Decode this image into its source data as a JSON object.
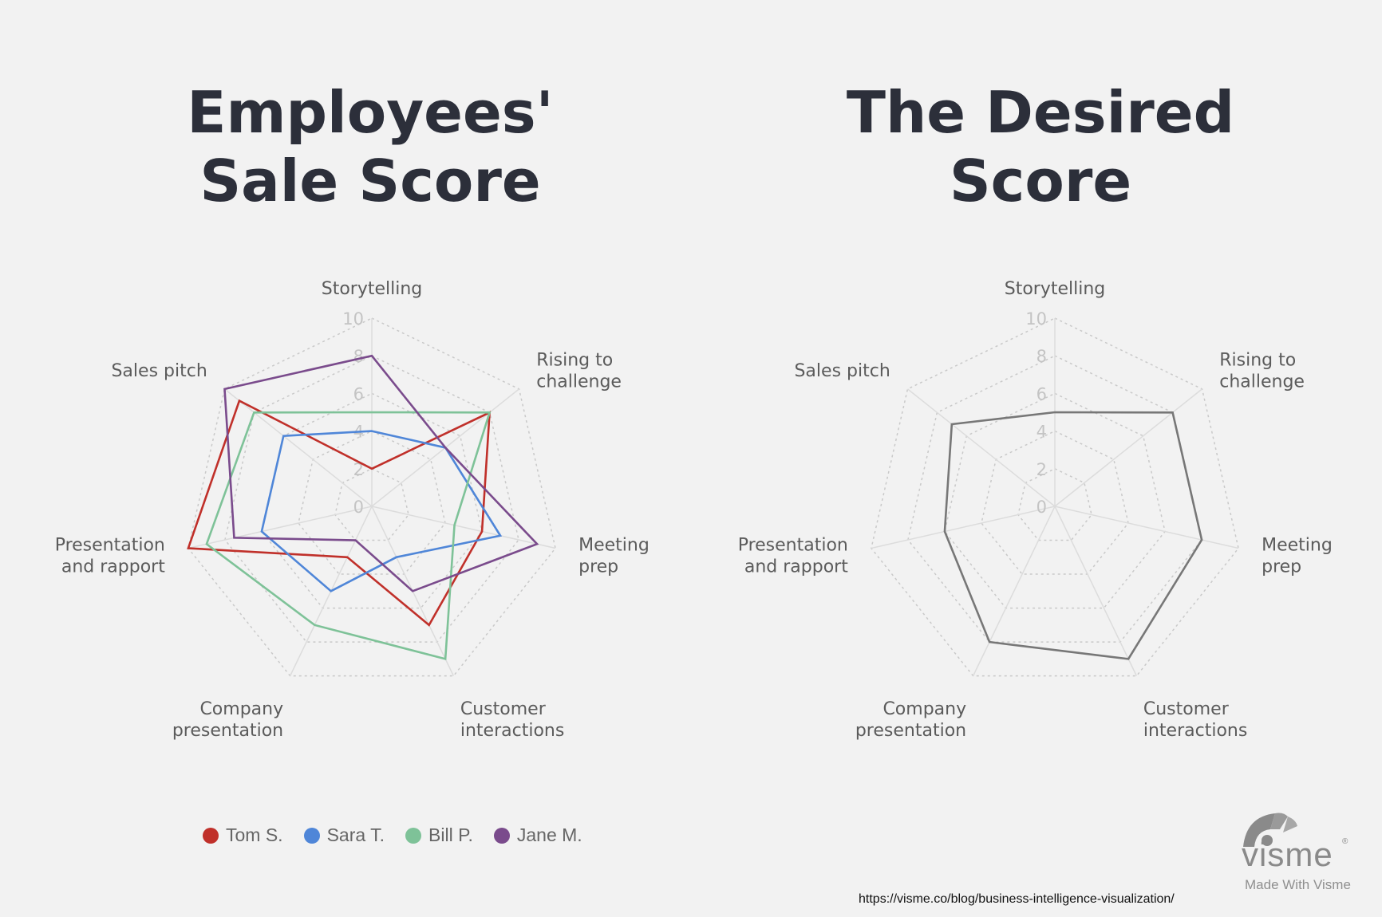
{
  "charts": [
    {
      "title_line1": "Employees'",
      "title_line2": "Sale Score"
    },
    {
      "title_line1": "The Desired",
      "title_line2": "Score"
    }
  ],
  "chart_data": [
    {
      "type": "radar",
      "title": "Employees' Sale Score",
      "axes": [
        [
          "Storytelling"
        ],
        [
          "Rising to",
          "challenge"
        ],
        [
          "Meeting",
          "prep"
        ],
        [
          "Customer",
          "interactions"
        ],
        [
          "Company",
          "presentation"
        ],
        [
          "Presentation",
          "and rapport"
        ],
        [
          "Sales pitch"
        ]
      ],
      "ticks": [
        0,
        2,
        4,
        6,
        8,
        10
      ],
      "range": [
        0,
        10
      ],
      "grid": true,
      "series": [
        {
          "name": "Tom S.",
          "color": "#c0302a",
          "values": [
            2,
            8,
            6,
            7,
            3,
            10,
            9
          ]
        },
        {
          "name": "Sara T.",
          "color": "#4f86d8",
          "values": [
            4,
            5,
            7,
            3,
            5,
            6,
            6
          ]
        },
        {
          "name": "Bill P.",
          "color": "#7ec298",
          "values": [
            5,
            8,
            4.5,
            9,
            7,
            9,
            8
          ]
        },
        {
          "name": "Jane M.",
          "color": "#7a4b8c",
          "values": [
            8,
            5,
            9,
            5,
            2,
            7.5,
            10
          ]
        }
      ],
      "legend": "bottom"
    },
    {
      "type": "radar",
      "title": "The Desired Score",
      "axes": [
        [
          "Storytelling"
        ],
        [
          "Rising to",
          "challenge"
        ],
        [
          "Meeting",
          "prep"
        ],
        [
          "Customer",
          "interactions"
        ],
        [
          "Company",
          "presentation"
        ],
        [
          "Presentation",
          "and rapport"
        ],
        [
          "Sales pitch"
        ]
      ],
      "ticks": [
        0,
        2,
        4,
        6,
        8,
        10
      ],
      "range": [
        0,
        10
      ],
      "grid": true,
      "series": [
        {
          "color": "#777777",
          "values": [
            5,
            8,
            8,
            9,
            8,
            6,
            7
          ]
        }
      ]
    }
  ],
  "legend_items": [
    {
      "name": "Tom S.",
      "color": "#c0302a"
    },
    {
      "name": "Sara T.",
      "color": "#4f86d8"
    },
    {
      "name": "Bill P.",
      "color": "#7ec298"
    },
    {
      "name": "Jane M.",
      "color": "#7a4b8c"
    }
  ],
  "footer": {
    "url": "https://visme.co/blog/business-intelligence-visualization/",
    "logo_text": "visme",
    "logo_tagline": "Made With Visme",
    "logo_reg": "®"
  }
}
